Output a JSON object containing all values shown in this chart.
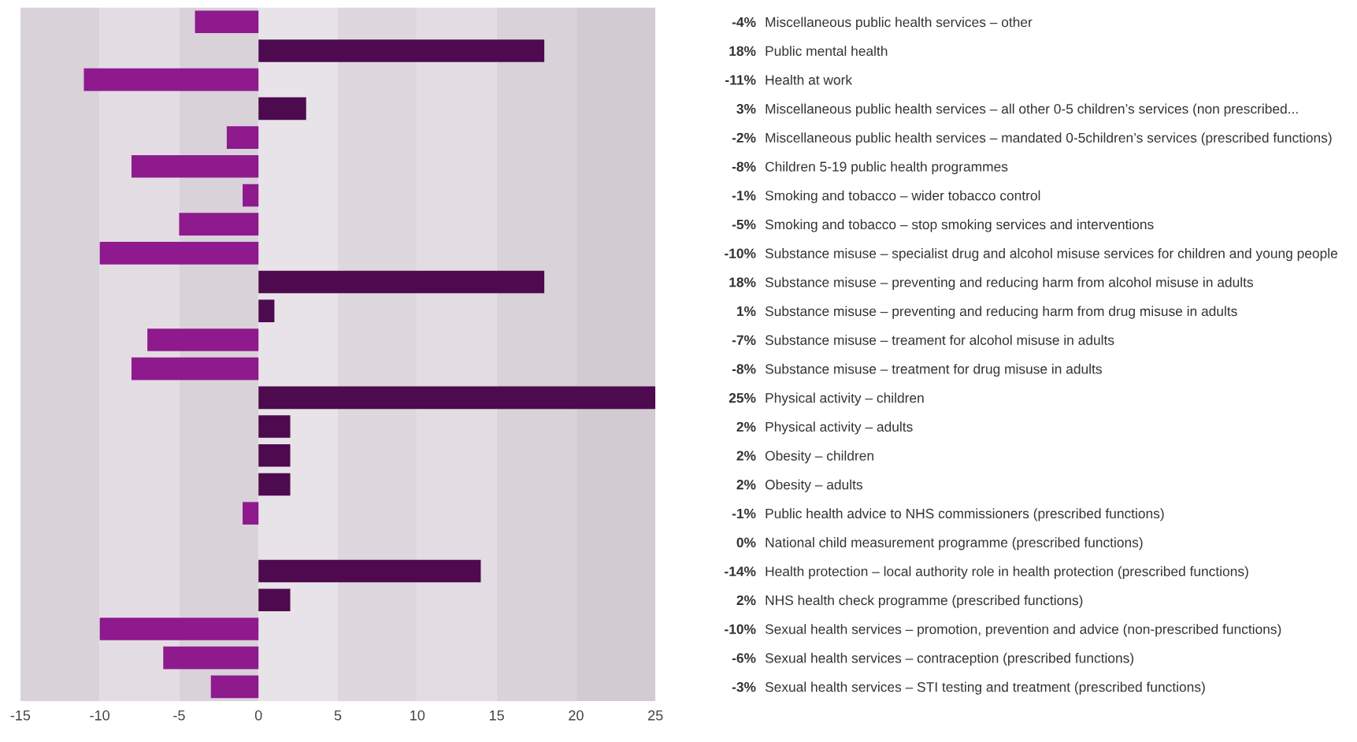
{
  "chart_data": {
    "type": "bar",
    "orientation": "horizontal",
    "categories": [
      "Miscellaneous public health services – other",
      "Public mental health",
      "Health at work",
      "Miscellaneous public health services – all other 0-5 children’s services (non prescribed...",
      "Miscellaneous public health services – mandated 0-5children’s services (prescribed functions)",
      "Children 5-19 public health programmes",
      "Smoking and tobacco – wider tobacco control",
      "Smoking and tobacco – stop smoking services and interventions",
      "Substance misuse – specialist drug and alcohol misuse services for children and young people",
      "Substance misuse – preventing and reducing harm from alcohol misuse in adults",
      "Substance misuse – preventing and reducing harm from drug misuse in adults",
      "Substance misuse – treament for alcohol misuse in adults",
      "Substance misuse – treatment for drug misuse in adults",
      "Physical activity – children",
      "Physical activity – adults",
      "Obesity – children",
      "Obesity – adults",
      "Public health advice to NHS commissioners (prescribed functions)",
      "National child measurement programme (prescribed functions)",
      "Health protection – local authority role in health protection (prescribed functions)",
      "NHS health check programme (prescribed functions)",
      "Sexual health services – promotion, prevention and advice (non-prescribed functions)",
      "Sexual health services – contraception (prescribed functions)",
      "Sexual health services – STI testing and treatment (prescribed functions)"
    ],
    "values": [
      -4,
      18,
      -11,
      3,
      -2,
      -8,
      -1,
      -5,
      -10,
      18,
      1,
      -7,
      -8,
      25,
      2,
      2,
      2,
      -1,
      0,
      14,
      2,
      -10,
      -6,
      -3
    ],
    "value_labels": [
      "-4%",
      "18%",
      "-11%",
      "3%",
      "-2%",
      "-8%",
      "-1%",
      "-5%",
      "-10%",
      "18%",
      "1%",
      "-7%",
      "-8%",
      "25%",
      "2%",
      "2%",
      "2%",
      "-1%",
      "0%",
      null,
      "2%",
      "-10%",
      "-6%",
      "-3%"
    ],
    "colors": [
      "#8e1a8e",
      "#4e0a4e",
      "#8e1a8e",
      "#4e0a4e",
      "#8e1a8e",
      "#8e1a8e",
      "#8e1a8e",
      "#8e1a8e",
      "#8e1a8e",
      "#4e0a4e",
      "#4e0a4e",
      "#8e1a8e",
      "#8e1a8e",
      "#4e0a4e",
      "#4e0a4e",
      "#4e0a4e",
      "#4e0a4e",
      "#8e1a8e",
      "#8e1a8e",
      "#4e0a4e",
      "#4e0a4e",
      "#8e1a8e",
      "#8e1a8e",
      "#8e1a8e"
    ],
    "xlim": [
      -15,
      25
    ],
    "xticks": [
      -15,
      -10,
      -5,
      0,
      5,
      10,
      15,
      20,
      25
    ],
    "bands": [
      {
        "axis": "x",
        "from": -15,
        "to": -10,
        "color": "#d9d2d9"
      },
      {
        "axis": "x",
        "from": -10,
        "to": -5,
        "color": "#e3dde3"
      },
      {
        "axis": "x",
        "from": -5,
        "to": 0,
        "color": "#d9d2d9"
      },
      {
        "axis": "x",
        "from": 0,
        "to": 5,
        "color": "#e8e3e8"
      },
      {
        "axis": "x",
        "from": 5,
        "to": 10,
        "color": "#ded7de"
      },
      {
        "axis": "x",
        "from": 10,
        "to": 15,
        "color": "#e3dde3"
      },
      {
        "axis": "x",
        "from": 15,
        "to": 20,
        "color": "#d9d2d9"
      },
      {
        "axis": "x",
        "from": 20,
        "to": 25,
        "color": "#d2cbd2"
      }
    ],
    "annotations": [
      "-14%"
    ],
    "grid": false
  }
}
